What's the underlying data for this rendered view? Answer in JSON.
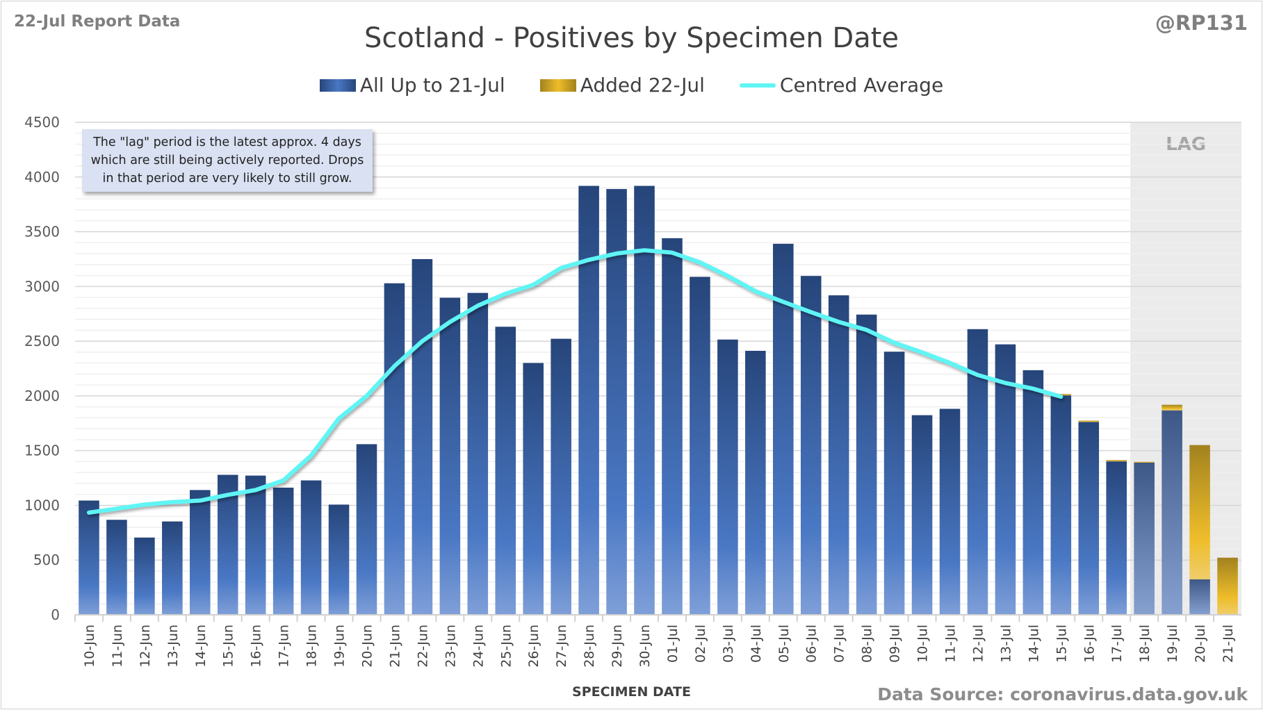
{
  "header": {
    "report_label": "22-Jul Report Data",
    "handle": "@RP131"
  },
  "footer": {
    "source": "Data Source: coronavirus.data.gov.uk"
  },
  "note": "The \"lag\" period is the latest approx. 4 days which are still being actively reported.  Drops in that period are very likely to still grow.",
  "colors": {
    "blue_dark": "#26457a",
    "blue_light": "#4a78c4",
    "gold": "#e8b92a",
    "avg": "#5ff5f5",
    "lag_bg": "#ebebeb"
  },
  "chart_data": {
    "type": "bar",
    "title": "Scotland - Positives by Specimen Date",
    "xlabel": "SPECIMEN DATE",
    "ylabel": "",
    "ylim": [
      0,
      4500
    ],
    "yticks": [
      0,
      500,
      1000,
      1500,
      2000,
      2500,
      3000,
      3500,
      4000,
      4500
    ],
    "grid": true,
    "legend_position": "top-center",
    "lag_label": "LAG",
    "lag_start": "18-Jul",
    "categories": [
      "10-Jun",
      "11-Jun",
      "12-Jun",
      "13-Jun",
      "14-Jun",
      "15-Jun",
      "16-Jun",
      "17-Jun",
      "18-Jun",
      "19-Jun",
      "20-Jun",
      "21-Jun",
      "22-Jun",
      "23-Jun",
      "24-Jun",
      "25-Jun",
      "26-Jun",
      "27-Jun",
      "28-Jun",
      "29-Jun",
      "30-Jun",
      "01-Jul",
      "02-Jul",
      "03-Jul",
      "04-Jul",
      "05-Jul",
      "06-Jul",
      "07-Jul",
      "08-Jul",
      "09-Jul",
      "10-Jul",
      "11-Jul",
      "12-Jul",
      "13-Jul",
      "14-Jul",
      "15-Jul",
      "16-Jul",
      "17-Jul",
      "18-Jul",
      "19-Jul",
      "20-Jul",
      "21-Jul"
    ],
    "series": [
      {
        "name": "All Up to 21-Jul",
        "type": "bar-stacked",
        "values": [
          1044,
          868,
          706,
          853,
          1140,
          1279,
          1272,
          1162,
          1228,
          1007,
          1559,
          3029,
          3250,
          2897,
          2941,
          2632,
          2301,
          2522,
          3919,
          3890,
          3919,
          3441,
          3088,
          2515,
          2412,
          3390,
          3096,
          2919,
          2743,
          2404,
          1824,
          1882,
          2610,
          2471,
          2235,
          2005,
          1762,
          1402,
          1390,
          1868,
          324,
          0
        ]
      },
      {
        "name": "Added 22-Jul",
        "type": "bar-stacked",
        "values": [
          0,
          0,
          0,
          0,
          0,
          0,
          0,
          0,
          0,
          0,
          0,
          0,
          0,
          0,
          0,
          0,
          0,
          0,
          0,
          0,
          0,
          0,
          0,
          0,
          0,
          0,
          0,
          0,
          0,
          0,
          0,
          0,
          0,
          0,
          0,
          12,
          12,
          12,
          8,
          51,
          1227,
          522
        ]
      },
      {
        "name": "Centred Average",
        "type": "line",
        "values": [
          934,
          970,
          1007,
          1030,
          1044,
          1096,
          1140,
          1228,
          1456,
          1794,
          2000,
          2272,
          2500,
          2676,
          2824,
          2934,
          3015,
          3169,
          3243,
          3301,
          3331,
          3309,
          3220,
          3096,
          2956,
          2860,
          2765,
          2676,
          2603,
          2485,
          2397,
          2301,
          2191,
          2118,
          2066,
          1993,
          null,
          null,
          null,
          null,
          null,
          null
        ]
      }
    ]
  }
}
